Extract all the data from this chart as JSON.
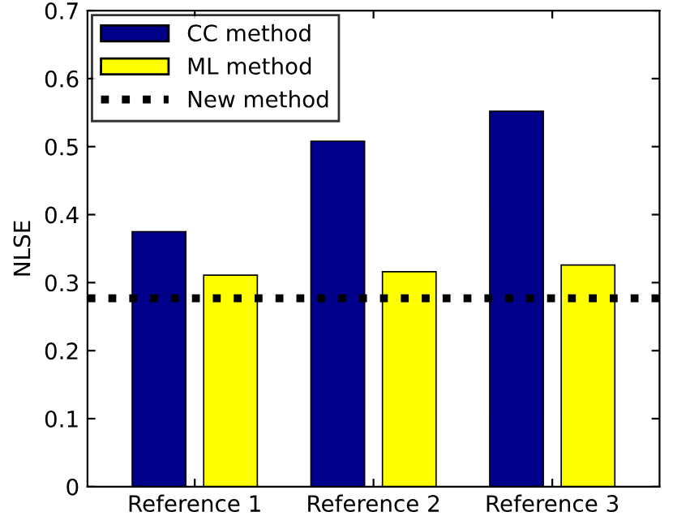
{
  "chart_data": {
    "type": "bar",
    "ylabel": "NLSE",
    "categories": [
      "Reference 1",
      "Reference 2",
      "Reference 3"
    ],
    "series": [
      {
        "name": "CC method",
        "color": "#00008b",
        "values": [
          0.375,
          0.508,
          0.552
        ]
      },
      {
        "name": "ML method",
        "color": "#ffff00",
        "values": [
          0.311,
          0.316,
          0.326
        ]
      }
    ],
    "ref_lines": [
      {
        "axis": "y",
        "value": 0.277,
        "label": "New method",
        "color": "#000000",
        "line_style": "dotted"
      }
    ],
    "ylim": [
      0,
      0.7
    ],
    "yticks": [
      0,
      0.1,
      0.2,
      0.3,
      0.4,
      0.5,
      0.6,
      0.7
    ],
    "grid": false,
    "legend": "top left"
  }
}
